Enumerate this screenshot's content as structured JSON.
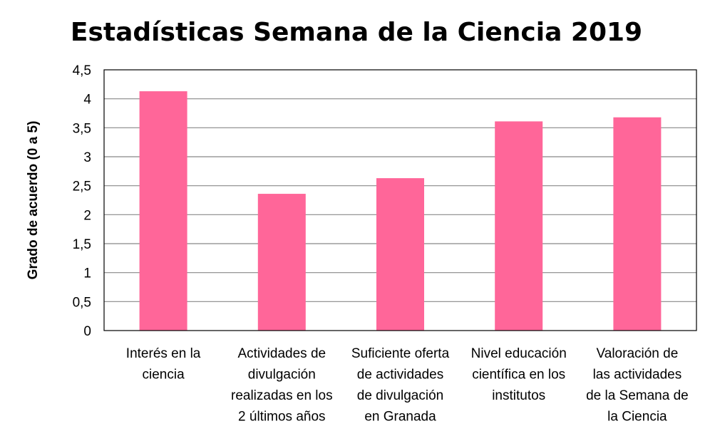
{
  "chart_data": {
    "type": "bar",
    "title": "Estadísticas Semana de la Ciencia 2019",
    "xlabel": "",
    "ylabel": "Grado de acuerdo (0 a 5)",
    "ylim": [
      0,
      4.5
    ],
    "yticks": [
      "0",
      "0,5",
      "1",
      "1,5",
      "2",
      "2,5",
      "3",
      "3,5",
      "4",
      "4,5"
    ],
    "grid": true,
    "legend": "none",
    "bar_color": "#FF6699",
    "categories": [
      [
        "Interés en la",
        "ciencia"
      ],
      [
        "Actividades de",
        "divulgación",
        "realizadas en los",
        "2 últimos años"
      ],
      [
        "Suficiente oferta",
        "de actividades",
        "de divulgación",
        "en Granada"
      ],
      [
        "Nivel educación",
        "científica en los",
        "institutos"
      ],
      [
        "Valoración de",
        "las actividades",
        "de la Semana de",
        "la Ciencia"
      ]
    ],
    "values": [
      4.13,
      2.36,
      2.63,
      3.61,
      3.68
    ]
  }
}
